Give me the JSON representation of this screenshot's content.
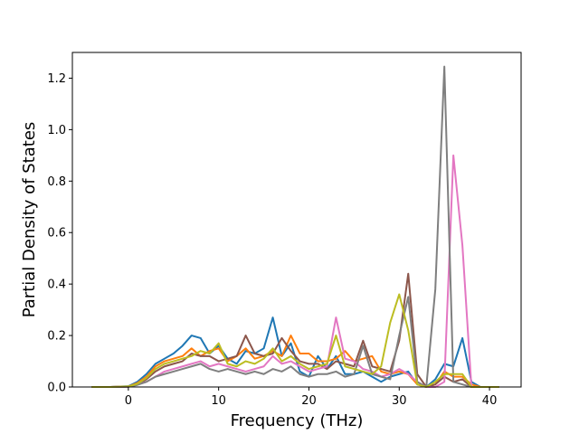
{
  "chart_data": {
    "type": "line",
    "title": "",
    "xlabel": "Frequency (THz)",
    "ylabel": "Partial Density of States",
    "xlim": [
      -6.2,
      43.5
    ],
    "ylim": [
      0.0,
      1.3
    ],
    "xticks": [
      0,
      10,
      20,
      30,
      40
    ],
    "yticks": [
      0.0,
      0.2,
      0.4,
      0.6,
      0.8,
      1.0,
      1.2
    ],
    "xtick_labels": [
      "0",
      "10",
      "20",
      "30",
      "40"
    ],
    "ytick_labels": [
      "0.0",
      "0.2",
      "0.4",
      "0.6",
      "0.8",
      "1.0",
      "1.2"
    ],
    "grid": false,
    "legend": "none",
    "x": [
      -4,
      -2,
      0,
      1,
      2,
      3,
      4,
      5,
      6,
      7,
      8,
      9,
      10,
      11,
      12,
      13,
      14,
      15,
      16,
      17,
      18,
      19,
      20,
      21,
      22,
      23,
      24,
      25,
      26,
      27,
      28,
      29,
      30,
      31,
      32,
      33,
      34,
      35,
      36,
      37,
      38,
      39,
      40,
      41
    ],
    "series": [
      {
        "color": "#1f77b4",
        "values": [
          0,
          0,
          0.003,
          0.02,
          0.05,
          0.09,
          0.11,
          0.13,
          0.16,
          0.2,
          0.19,
          0.13,
          0.16,
          0.11,
          0.09,
          0.14,
          0.13,
          0.15,
          0.27,
          0.12,
          0.17,
          0.06,
          0.04,
          0.12,
          0.07,
          0.12,
          0.05,
          0.05,
          0.06,
          0.04,
          0.02,
          0.04,
          0.05,
          0.06,
          0.01,
          0,
          0.03,
          0.09,
          0.08,
          0.19,
          0.02,
          0,
          0,
          0
        ]
      },
      {
        "color": "#ff7f0e",
        "values": [
          0,
          0,
          0.002,
          0.015,
          0.04,
          0.08,
          0.1,
          0.11,
          0.12,
          0.15,
          0.12,
          0.14,
          0.15,
          0.1,
          0.12,
          0.15,
          0.11,
          0.12,
          0.14,
          0.12,
          0.2,
          0.13,
          0.13,
          0.1,
          0.1,
          0.11,
          0.14,
          0.1,
          0.11,
          0.12,
          0.06,
          0.05,
          0.06,
          0.05,
          0.01,
          0,
          0.01,
          0.06,
          0.04,
          0.04,
          0.01,
          0,
          0,
          0
        ]
      },
      {
        "color": "#8c564b",
        "values": [
          0,
          0,
          0.001,
          0.01,
          0.03,
          0.06,
          0.08,
          0.09,
          0.1,
          0.13,
          0.12,
          0.12,
          0.1,
          0.11,
          0.12,
          0.2,
          0.13,
          0.12,
          0.13,
          0.19,
          0.14,
          0.1,
          0.09,
          0.09,
          0.07,
          0.1,
          0.09,
          0.08,
          0.18,
          0.08,
          0.07,
          0.06,
          0.18,
          0.44,
          0.05,
          0,
          0.01,
          0.04,
          0.02,
          0.03,
          0,
          0,
          0,
          0
        ]
      },
      {
        "color": "#e377c2",
        "values": [
          0,
          0,
          0.001,
          0.01,
          0.02,
          0.04,
          0.06,
          0.07,
          0.08,
          0.09,
          0.1,
          0.08,
          0.09,
          0.08,
          0.07,
          0.06,
          0.07,
          0.08,
          0.12,
          0.09,
          0.1,
          0.08,
          0.06,
          0.07,
          0.08,
          0.27,
          0.11,
          0.1,
          0.07,
          0.06,
          0.04,
          0.05,
          0.07,
          0.05,
          0.02,
          0,
          0,
          0.02,
          0.9,
          0.55,
          0,
          0,
          0,
          0
        ]
      },
      {
        "color": "#7f7f7f",
        "values": [
          0,
          0,
          0.001,
          0.008,
          0.02,
          0.04,
          0.05,
          0.06,
          0.07,
          0.08,
          0.09,
          0.07,
          0.06,
          0.07,
          0.06,
          0.05,
          0.06,
          0.05,
          0.07,
          0.06,
          0.08,
          0.05,
          0.04,
          0.05,
          0.05,
          0.06,
          0.04,
          0.05,
          0.16,
          0.05,
          0.04,
          0.03,
          0.2,
          0.35,
          0.02,
          0,
          0.38,
          1.245,
          0.02,
          0.01,
          0,
          0,
          0,
          0
        ]
      },
      {
        "color": "#bcbd22",
        "values": [
          0,
          0,
          0.002,
          0.012,
          0.035,
          0.07,
          0.09,
          0.1,
          0.11,
          0.12,
          0.14,
          0.13,
          0.17,
          0.09,
          0.08,
          0.1,
          0.09,
          0.11,
          0.15,
          0.1,
          0.12,
          0.09,
          0.07,
          0.08,
          0.09,
          0.2,
          0.08,
          0.07,
          0.06,
          0.05,
          0.08,
          0.25,
          0.36,
          0.22,
          0.01,
          0,
          0.02,
          0.05,
          0.05,
          0.05,
          0,
          0,
          0,
          0
        ]
      }
    ]
  }
}
